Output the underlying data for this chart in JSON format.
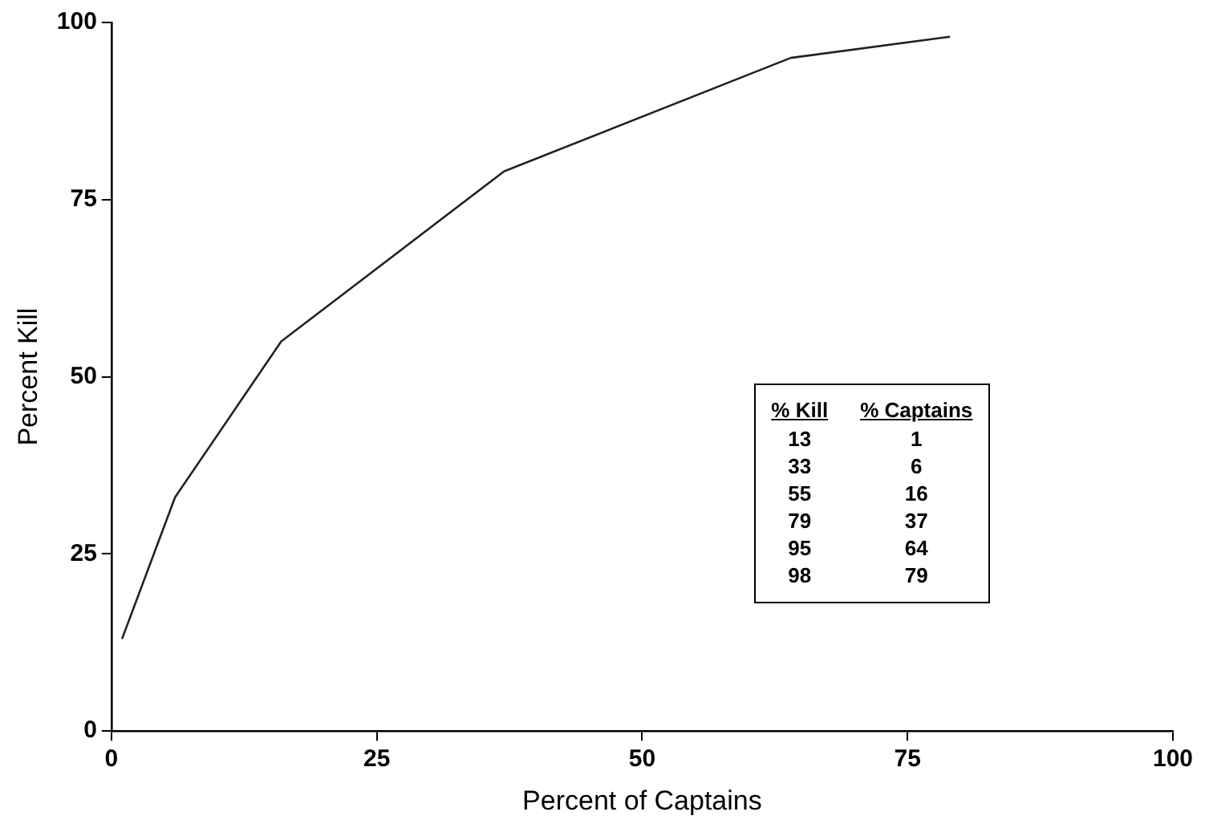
{
  "chart_data": {
    "type": "line",
    "xlabel": "Percent of Captains",
    "ylabel": "Percent Kill",
    "x": [
      1,
      6,
      16,
      37,
      64,
      79
    ],
    "series": [
      {
        "color": "#222222",
        "values": [
          13,
          33,
          55,
          79,
          95,
          98
        ]
      }
    ],
    "xlim": [
      0,
      100
    ],
    "xticks": [
      0,
      25,
      50,
      75,
      100
    ],
    "ylim": [
      0,
      100
    ],
    "yticks": [
      0,
      25,
      50,
      75,
      100
    ],
    "grid": false,
    "legend": false,
    "marker": "none",
    "line_style": "solid",
    "annotations": [
      "% Kill",
      "% Captains",
      "13",
      "1",
      "33",
      "6",
      "55",
      "16",
      "79",
      "37",
      "95",
      "64",
      "98",
      "79"
    ]
  }
}
